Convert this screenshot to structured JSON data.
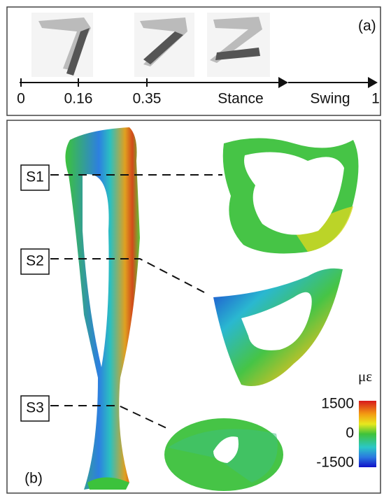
{
  "panel_a": {
    "label": "(a)",
    "timeline": [
      "0",
      "0.16",
      "0.35",
      "Stance",
      "Swing",
      "1"
    ]
  },
  "panel_b": {
    "label": "(b)",
    "sections": [
      "S1",
      "S2",
      "S3"
    ],
    "colorbar": {
      "title": "με",
      "ticks": [
        1500,
        0,
        -1500
      ]
    }
  }
}
